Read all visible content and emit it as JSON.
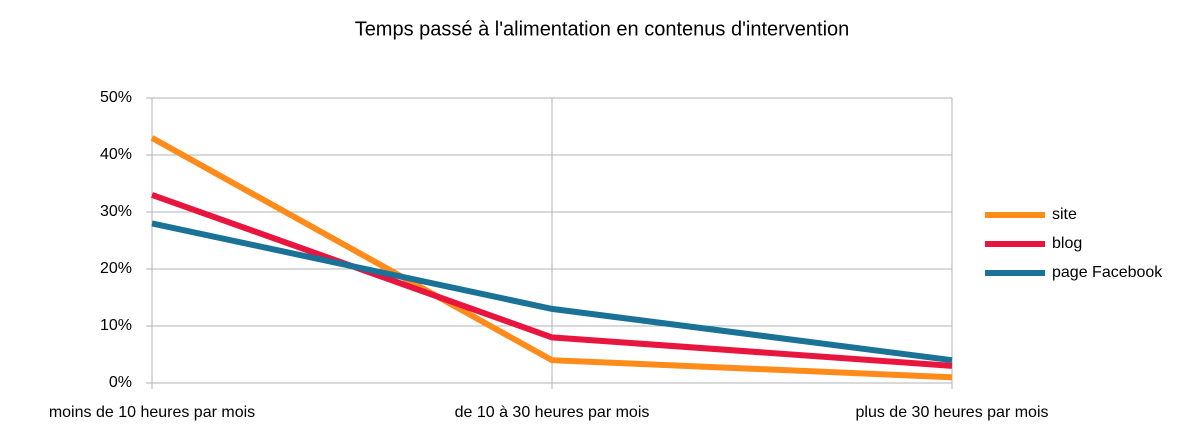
{
  "chart_data": {
    "type": "line",
    "title": "Temps passé à l'alimentation en contenus d'intervention",
    "categories": [
      "moins de 10 heures par mois",
      "de 10 à 30 heures par mois",
      "plus de 30 heures par mois"
    ],
    "series": [
      {
        "name": "site",
        "color": "#ff8c1a",
        "values": [
          43,
          4,
          1
        ]
      },
      {
        "name": "blog",
        "color": "#e8153f",
        "values": [
          33,
          8,
          3
        ]
      },
      {
        "name": "page Facebook",
        "color": "#1a7297",
        "values": [
          28,
          13,
          4
        ]
      }
    ],
    "ylim": [
      0,
      50
    ],
    "yticks": [
      {
        "value": 0,
        "label": "0%"
      },
      {
        "value": 10,
        "label": "10%"
      },
      {
        "value": 20,
        "label": "20%"
      },
      {
        "value": 30,
        "label": "30%"
      },
      {
        "value": 40,
        "label": "40%"
      },
      {
        "value": 50,
        "label": "50%"
      }
    ],
    "grid": true,
    "legend": "right"
  }
}
